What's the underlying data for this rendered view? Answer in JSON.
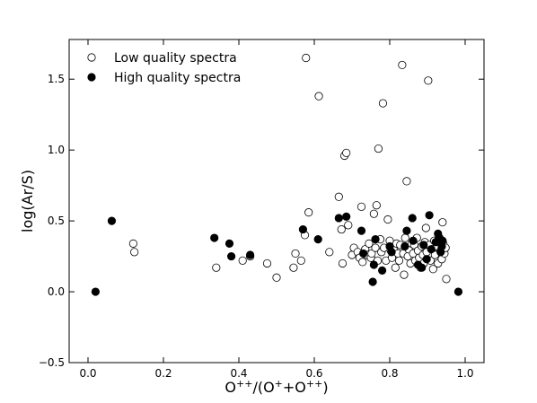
{
  "chart_data": {
    "type": "scatter",
    "title": "",
    "xlabel": "O⁺⁺/(O⁺+O⁺⁺)",
    "ylabel": "log(Ar/S)",
    "xlim": [
      -0.05,
      1.05
    ],
    "ylim": [
      -0.5,
      1.78
    ],
    "xticks": [
      0.0,
      0.2,
      0.4,
      0.6,
      0.8,
      1.0
    ],
    "xtick_labels": [
      "0.0",
      "0.2",
      "0.4",
      "0.6",
      "0.8",
      "1.0"
    ],
    "yticks": [
      -0.5,
      0.0,
      0.5,
      1.0,
      1.5
    ],
    "ytick_labels": [
      "−0.5",
      "0.0",
      "0.5",
      "1.0",
      "1.5"
    ],
    "grid": false,
    "legend_position": "top-left",
    "series": [
      {
        "name": "Low quality spectra",
        "marker": "open-circle",
        "color": "#000000",
        "points": [
          [
            0.12,
            0.34
          ],
          [
            0.123,
            0.28
          ],
          [
            0.34,
            0.17
          ],
          [
            0.41,
            0.22
          ],
          [
            0.43,
            0.25
          ],
          [
            0.475,
            0.2
          ],
          [
            0.5,
            0.1
          ],
          [
            0.545,
            0.17
          ],
          [
            0.55,
            0.27
          ],
          [
            0.565,
            0.22
          ],
          [
            0.575,
            0.4
          ],
          [
            0.585,
            0.56
          ],
          [
            0.578,
            1.65
          ],
          [
            0.612,
            1.38
          ],
          [
            0.64,
            0.28
          ],
          [
            0.665,
            0.67
          ],
          [
            0.672,
            0.44
          ],
          [
            0.675,
            0.2
          ],
          [
            0.68,
            0.96
          ],
          [
            0.685,
            0.98
          ],
          [
            0.69,
            0.47
          ],
          [
            0.7,
            0.26
          ],
          [
            0.705,
            0.31
          ],
          [
            0.715,
            0.28
          ],
          [
            0.72,
            0.24
          ],
          [
            0.725,
            0.6
          ],
          [
            0.728,
            0.21
          ],
          [
            0.735,
            0.3
          ],
          [
            0.74,
            0.26
          ],
          [
            0.745,
            0.34
          ],
          [
            0.75,
            0.24
          ],
          [
            0.752,
            0.27
          ],
          [
            0.758,
            0.55
          ],
          [
            0.762,
            0.31
          ],
          [
            0.765,
            0.61
          ],
          [
            0.768,
            0.22
          ],
          [
            0.77,
            1.01
          ],
          [
            0.775,
            0.37
          ],
          [
            0.778,
            0.28
          ],
          [
            0.782,
            1.33
          ],
          [
            0.785,
            0.31
          ],
          [
            0.79,
            0.22
          ],
          [
            0.795,
            0.51
          ],
          [
            0.8,
            0.36
          ],
          [
            0.803,
            0.29
          ],
          [
            0.806,
            0.24
          ],
          [
            0.81,
            0.3
          ],
          [
            0.815,
            0.17
          ],
          [
            0.818,
            0.34
          ],
          [
            0.822,
            0.27
          ],
          [
            0.825,
            0.22
          ],
          [
            0.828,
            0.33
          ],
          [
            0.833,
            1.6
          ],
          [
            0.836,
            0.27
          ],
          [
            0.838,
            0.12
          ],
          [
            0.841,
            0.38
          ],
          [
            0.845,
            0.78
          ],
          [
            0.848,
            0.25
          ],
          [
            0.85,
            0.3
          ],
          [
            0.855,
            0.2
          ],
          [
            0.858,
            0.34
          ],
          [
            0.862,
            0.27
          ],
          [
            0.865,
            0.33
          ],
          [
            0.868,
            0.22
          ],
          [
            0.872,
            0.38
          ],
          [
            0.875,
            0.29
          ],
          [
            0.878,
            0.24
          ],
          [
            0.882,
            0.17
          ],
          [
            0.885,
            0.32
          ],
          [
            0.888,
            0.26
          ],
          [
            0.89,
            0.2
          ],
          [
            0.893,
            0.35
          ],
          [
            0.896,
            0.45
          ],
          [
            0.898,
            0.28
          ],
          [
            0.902,
            1.49
          ],
          [
            0.905,
            0.33
          ],
          [
            0.908,
            0.22
          ],
          [
            0.912,
            0.3
          ],
          [
            0.915,
            0.16
          ],
          [
            0.918,
            0.36
          ],
          [
            0.92,
            0.26
          ],
          [
            0.925,
            0.32
          ],
          [
            0.928,
            0.2
          ],
          [
            0.932,
            0.38
          ],
          [
            0.935,
            0.29
          ],
          [
            0.938,
            0.23
          ],
          [
            0.94,
            0.49
          ],
          [
            0.942,
            0.34
          ],
          [
            0.945,
            0.27
          ],
          [
            0.948,
            0.31
          ],
          [
            0.95,
            0.09
          ]
        ]
      },
      {
        "name": "High quality spectra",
        "marker": "filled-circle",
        "color": "#000000",
        "points": [
          [
            0.02,
            0.0
          ],
          [
            0.063,
            0.5
          ],
          [
            0.335,
            0.38
          ],
          [
            0.375,
            0.34
          ],
          [
            0.38,
            0.25
          ],
          [
            0.43,
            0.26
          ],
          [
            0.57,
            0.44
          ],
          [
            0.61,
            0.37
          ],
          [
            0.665,
            0.52
          ],
          [
            0.685,
            0.53
          ],
          [
            0.725,
            0.43
          ],
          [
            0.73,
            0.27
          ],
          [
            0.755,
            0.07
          ],
          [
            0.758,
            0.19
          ],
          [
            0.762,
            0.37
          ],
          [
            0.78,
            0.15
          ],
          [
            0.8,
            0.32
          ],
          [
            0.805,
            0.28
          ],
          [
            0.84,
            0.32
          ],
          [
            0.845,
            0.43
          ],
          [
            0.86,
            0.52
          ],
          [
            0.862,
            0.36
          ],
          [
            0.875,
            0.19
          ],
          [
            0.885,
            0.17
          ],
          [
            0.89,
            0.33
          ],
          [
            0.898,
            0.23
          ],
          [
            0.905,
            0.54
          ],
          [
            0.91,
            0.3
          ],
          [
            0.922,
            0.35
          ],
          [
            0.928,
            0.41
          ],
          [
            0.93,
            0.38
          ],
          [
            0.935,
            0.28
          ],
          [
            0.938,
            0.32
          ],
          [
            0.94,
            0.36
          ],
          [
            0.982,
            0.0
          ]
        ]
      }
    ]
  }
}
